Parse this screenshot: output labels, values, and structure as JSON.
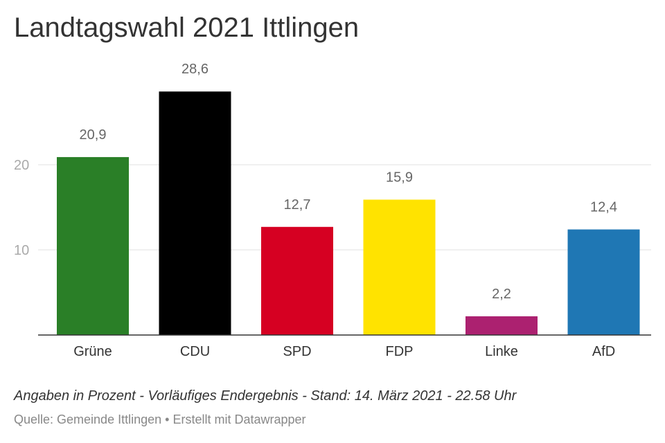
{
  "chart_data": {
    "type": "bar",
    "title": "Landtagswahl 2021 Ittlingen",
    "categories": [
      "Grüne",
      "CDU",
      "SPD",
      "FDP",
      "Linke",
      "AfD"
    ],
    "values": [
      20.9,
      28.6,
      12.7,
      15.9,
      2.2,
      12.4
    ],
    "value_labels": [
      "20,9",
      "28,6",
      "12,7",
      "15,9",
      "2,2",
      "12,4"
    ],
    "colors": [
      "#2a7f27",
      "#000000",
      "#d60022",
      "#ffe300",
      "#ac2170",
      "#1f77b4"
    ],
    "y_ticks": [
      10,
      20
    ],
    "ylim": [
      0,
      30
    ],
    "grid": true,
    "legend": "none"
  },
  "notes": "Angaben in Prozent - Vorläufiges Endergebnis - Stand: 14. März 2021 - 22.58 Uhr",
  "source": {
    "text": "Quelle: Gemeinde Ittlingen",
    "separator": "•",
    "credit": "Erstellt mit Datawrapper"
  }
}
